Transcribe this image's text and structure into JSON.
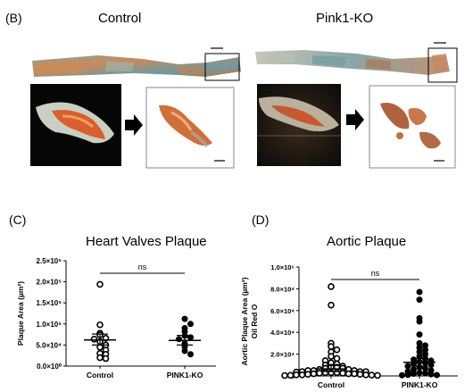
{
  "panel_b": {
    "letter": "(B)",
    "groups": [
      {
        "title": "Control"
      },
      {
        "title": "Pink1-KO"
      }
    ]
  },
  "chart_data": [
    {
      "panel": "(C)",
      "type": "scatter",
      "title": "Heart Valves Plaque",
      "xlabel": "",
      "ylabel": "Plaque Area (µm²)",
      "categories": [
        "Control",
        "PINK1-KO"
      ],
      "ylim": [
        0,
        250000
      ],
      "yticks": [
        {
          "value": 0,
          "label": "0.0×10⁰"
        },
        {
          "value": 50000,
          "label": "5.0×10⁴"
        },
        {
          "value": 100000,
          "label": "1.0×10⁵"
        },
        {
          "value": 150000,
          "label": "1.5×10⁵"
        },
        {
          "value": 200000,
          "label": "2.0×10⁵"
        },
        {
          "value": 250000,
          "label": "2.5×10⁵"
        }
      ],
      "significance": "ns",
      "marker_styles": [
        "open",
        "filled"
      ],
      "groups": [
        {
          "name": "Control",
          "mean": 62000,
          "sem_low": 50000,
          "sem_high": 76000,
          "values": [
            194000,
            98000,
            78000,
            74000,
            66000,
            64000,
            58000,
            50000,
            45000,
            38000,
            30000,
            28000,
            20000,
            18000
          ]
        },
        {
          "name": "PINK1-KO",
          "mean": 61000,
          "sem_low": 50000,
          "sem_high": 73000,
          "values": [
            112000,
            100000,
            90000,
            82000,
            72000,
            68000,
            64000,
            54000,
            46000,
            36000,
            28000
          ]
        }
      ]
    },
    {
      "panel": "(D)",
      "type": "scatter",
      "title": "Aortic Plaque",
      "xlabel": "",
      "ylabel": "Aortic Plaque Area (µm²)",
      "ylabel2": "Oil Red O",
      "categories": [
        "Control",
        "PINK1-KO"
      ],
      "ylim": [
        0,
        100000
      ],
      "yticks": [
        {
          "value": 0,
          "label": "0"
        },
        {
          "value": 20000,
          "label": "2.0×10⁴"
        },
        {
          "value": 40000,
          "label": "4.0×10⁴"
        },
        {
          "value": 60000,
          "label": "6.0×10⁴"
        },
        {
          "value": 80000,
          "label": "8.0×10⁴"
        },
        {
          "value": 100000,
          "label": "1.0×10⁵"
        }
      ],
      "significance": "ns",
      "marker_styles": [
        "open",
        "filled"
      ],
      "groups": [
        {
          "name": "Control",
          "mean": 6500,
          "sem_low": 4000,
          "sem_high": 9500,
          "values": [
            82000,
            65000,
            30000,
            27000,
            24000,
            22000,
            18000,
            16000,
            14000,
            12000,
            11000,
            10000,
            9000,
            8000,
            8000,
            7000,
            7000,
            6000,
            6000,
            5000,
            5000,
            5000,
            4000,
            4000,
            4000,
            3500,
            3000,
            3000,
            3000,
            2500,
            2500,
            2000,
            2000,
            2000,
            1500,
            1500,
            1000,
            1000,
            1000,
            800,
            600,
            500,
            400
          ]
        },
        {
          "name": "PINK1-KO",
          "mean": 12500,
          "sem_low": 9000,
          "sem_high": 16000,
          "values": [
            77000,
            70000,
            53000,
            50000,
            38000,
            30000,
            28000,
            26000,
            24000,
            22000,
            20000,
            18000,
            16000,
            15000,
            14000,
            13000,
            12000,
            11000,
            10000,
            9000,
            8000,
            7000,
            6000,
            5000,
            4000,
            3000,
            2500,
            2000,
            1500,
            1000,
            800,
            600
          ]
        }
      ]
    }
  ]
}
